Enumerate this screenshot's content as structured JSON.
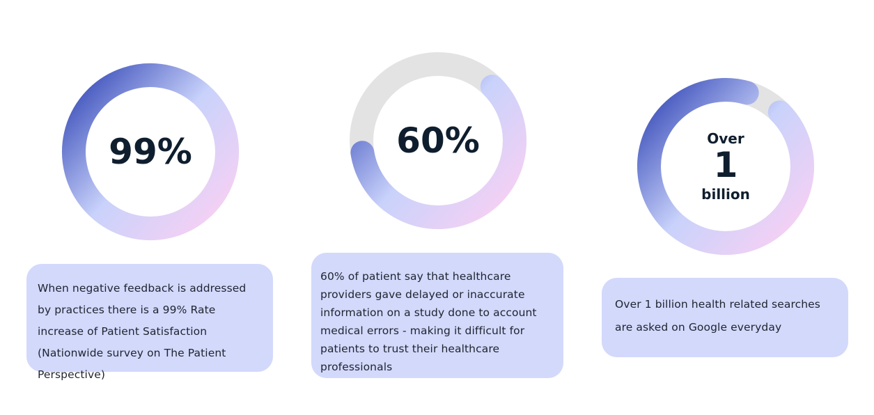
{
  "stats": [
    {
      "value": "99%",
      "progress_fraction": 0.99,
      "description": "When negative feedback is addressed by practices there is a  99% Rate increase of Patient Satisfaction (Nationwide survey on The Patient Perspective)"
    },
    {
      "value": "60%",
      "progress_fraction": 0.6,
      "description": "60% of patient say that healthcare providers gave delayed or inaccurate information on a study done to account medical errors - making it difficult for patients to trust their healthcare professionals"
    },
    {
      "value_top": "Over",
      "value_main": "1",
      "value_bottom": "billion",
      "progress_fraction": 0.92,
      "description": "Over 1 billion health related searches are asked on Google everyday"
    }
  ],
  "colors": {
    "card_background": "#d2d9fb",
    "ring_track": "#e3e3e3",
    "gradient_blue": "#4255bd",
    "gradient_light": "#c9d2fb",
    "gradient_pink": "#fbd0f3",
    "text_dark": "#0f1e2e"
  }
}
